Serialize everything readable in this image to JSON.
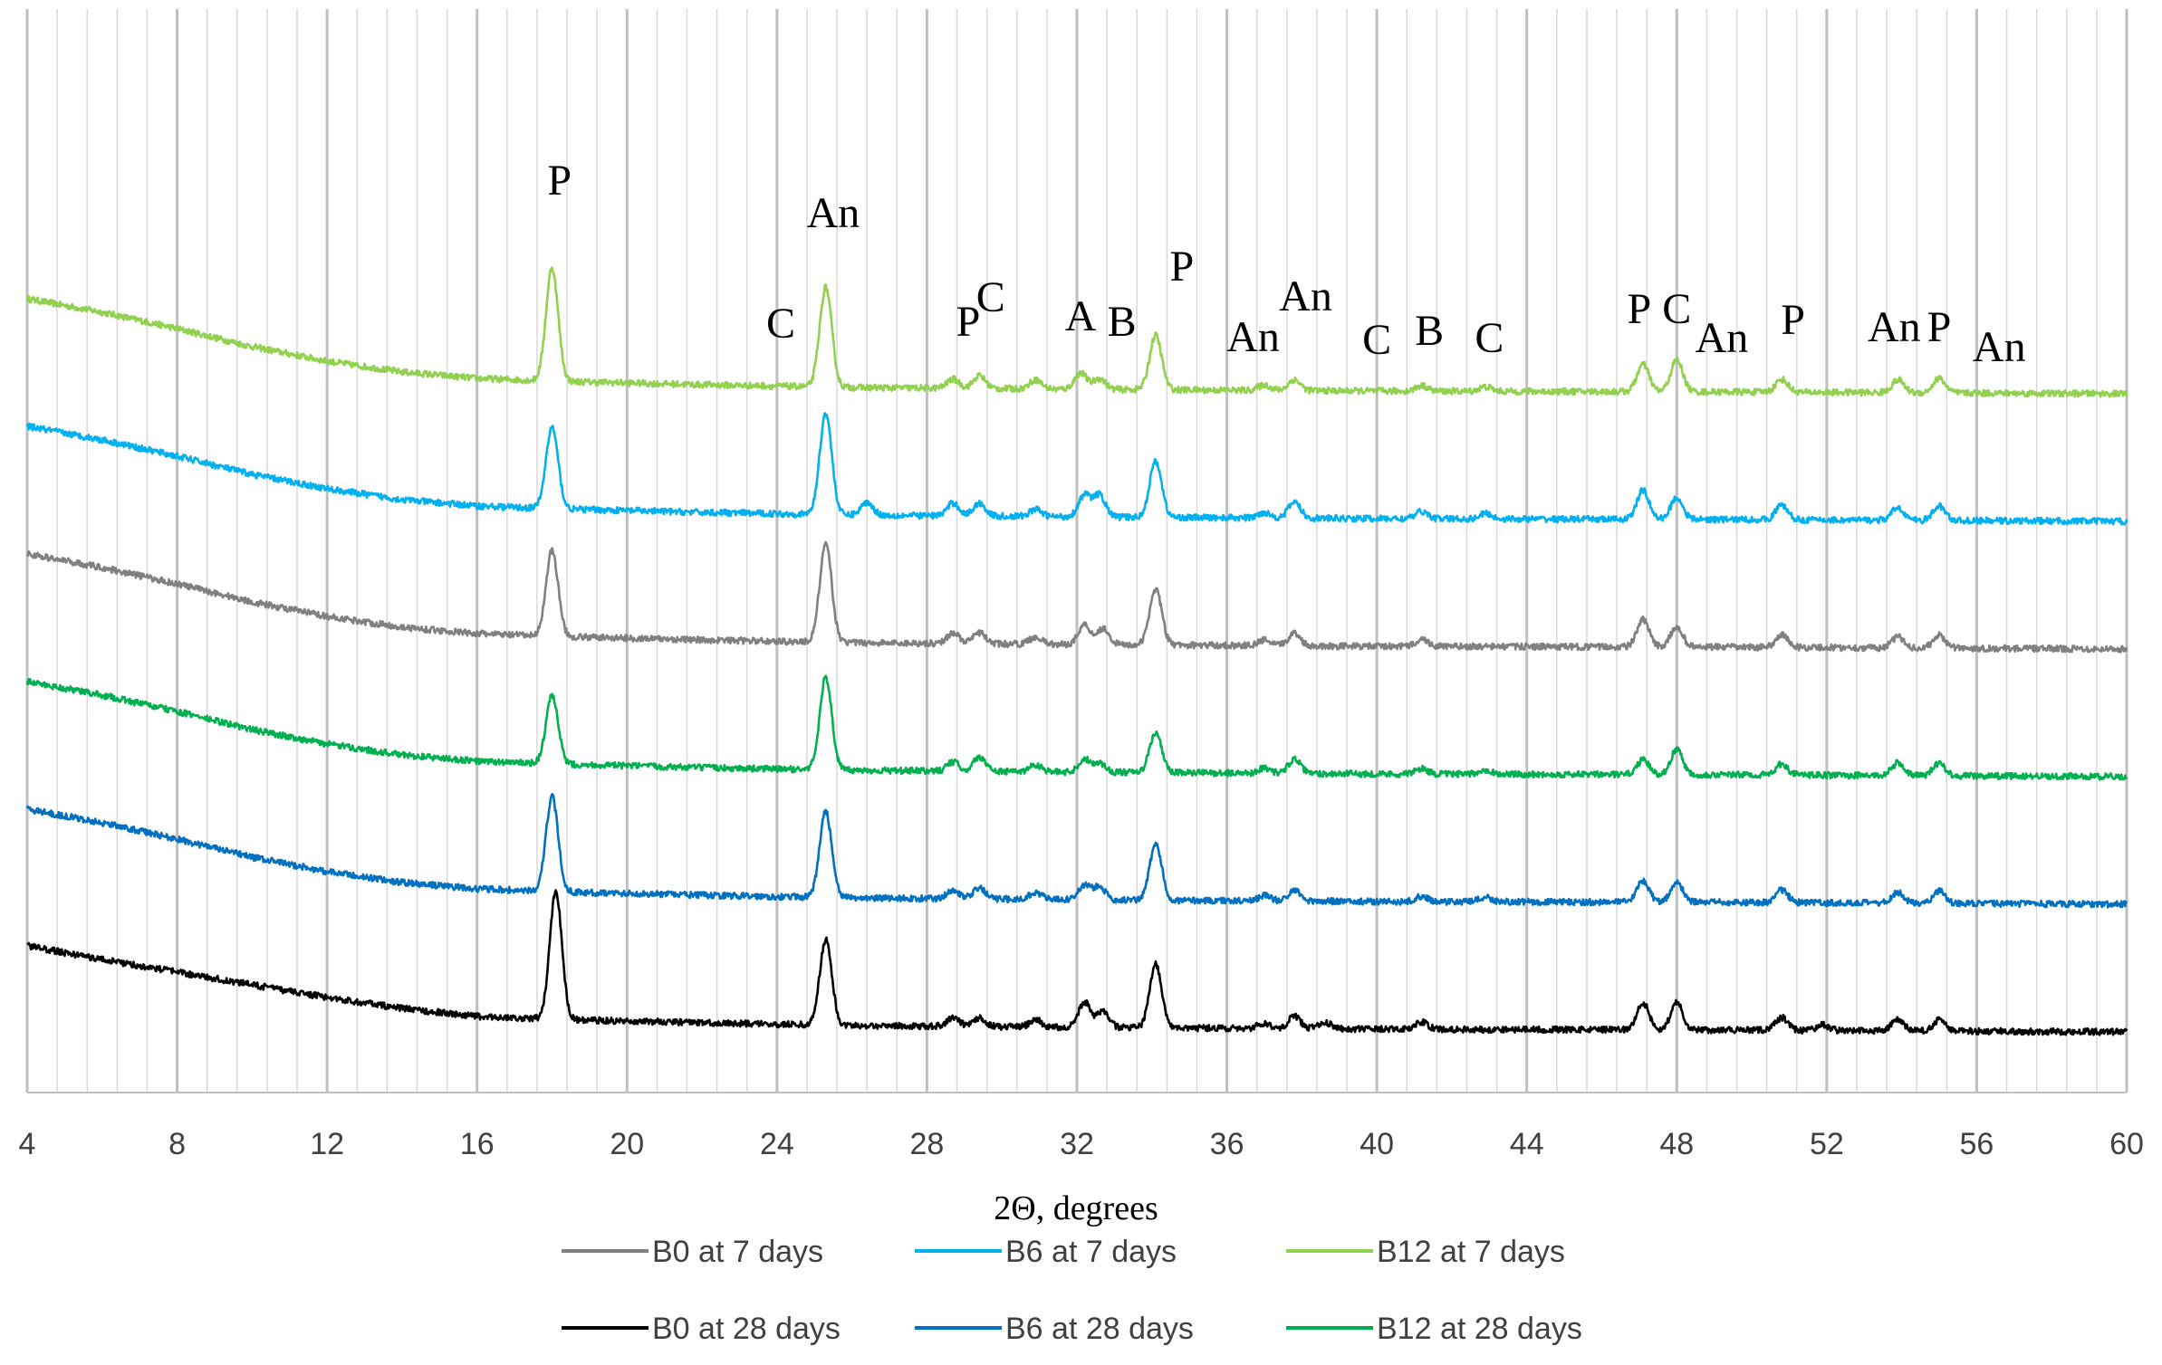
{
  "chart_data": {
    "type": "line",
    "title": "",
    "xlabel": "2Θ, degrees",
    "ylabel": "",
    "xlim": [
      4,
      60
    ],
    "x_ticks": [
      4,
      8,
      12,
      16,
      20,
      24,
      28,
      32,
      36,
      40,
      44,
      48,
      52,
      56,
      60
    ],
    "x_tick_labels": [
      "4",
      "8",
      "12",
      "16",
      "20",
      "24",
      "28",
      "32",
      "36",
      "40",
      "44",
      "48",
      "52",
      "56",
      "60"
    ],
    "minor_grid_step": 0.8,
    "series": [
      {
        "name": "B12 at 7 days",
        "color": "#92D050",
        "offset": 5,
        "baseline": [
          [
            4,
            1.05
          ],
          [
            6,
            0.9
          ],
          [
            8,
            0.72
          ],
          [
            10,
            0.52
          ],
          [
            12,
            0.36
          ],
          [
            14,
            0.24
          ],
          [
            16,
            0.17
          ],
          [
            18,
            0.14
          ],
          [
            22,
            0.1
          ],
          [
            26,
            0.07
          ],
          [
            32,
            0.05
          ],
          [
            40,
            0.03
          ],
          [
            50,
            0.02
          ],
          [
            60,
            0.0
          ]
        ],
        "peaks": [
          [
            18.0,
            1.25
          ],
          [
            25.3,
            1.1
          ],
          [
            28.7,
            0.1
          ],
          [
            29.4,
            0.14
          ],
          [
            30.9,
            0.1
          ],
          [
            32.1,
            0.18
          ],
          [
            32.6,
            0.12
          ],
          [
            34.1,
            0.6
          ],
          [
            37.0,
            0.06
          ],
          [
            37.8,
            0.12
          ],
          [
            41.2,
            0.06
          ],
          [
            42.9,
            0.05
          ],
          [
            47.1,
            0.3
          ],
          [
            48.0,
            0.35
          ],
          [
            50.8,
            0.14
          ],
          [
            53.9,
            0.14
          ],
          [
            55.0,
            0.16
          ]
        ]
      },
      {
        "name": "B6 at 7 days",
        "color": "#00B0F0",
        "offset": 4,
        "baseline": [
          [
            4,
            1.05
          ],
          [
            6,
            0.9
          ],
          [
            8,
            0.72
          ],
          [
            10,
            0.52
          ],
          [
            12,
            0.36
          ],
          [
            14,
            0.24
          ],
          [
            16,
            0.17
          ],
          [
            18,
            0.14
          ],
          [
            22,
            0.1
          ],
          [
            26,
            0.07
          ],
          [
            32,
            0.05
          ],
          [
            40,
            0.03
          ],
          [
            50,
            0.02
          ],
          [
            60,
            0.0
          ]
        ],
        "peaks": [
          [
            18.0,
            0.9
          ],
          [
            25.3,
            1.12
          ],
          [
            26.4,
            0.14
          ],
          [
            28.7,
            0.14
          ],
          [
            29.4,
            0.14
          ],
          [
            30.9,
            0.08
          ],
          [
            32.2,
            0.24
          ],
          [
            32.6,
            0.24
          ],
          [
            34.1,
            0.62
          ],
          [
            37.0,
            0.06
          ],
          [
            37.8,
            0.18
          ],
          [
            41.2,
            0.08
          ],
          [
            42.9,
            0.06
          ],
          [
            47.1,
            0.32
          ],
          [
            48.0,
            0.24
          ],
          [
            50.8,
            0.16
          ],
          [
            53.9,
            0.14
          ],
          [
            55.0,
            0.16
          ]
        ]
      },
      {
        "name": "B0 at 7 days",
        "color": "#808080",
        "offset": 3,
        "baseline": [
          [
            4,
            1.05
          ],
          [
            6,
            0.9
          ],
          [
            8,
            0.72
          ],
          [
            10,
            0.52
          ],
          [
            12,
            0.36
          ],
          [
            14,
            0.24
          ],
          [
            16,
            0.17
          ],
          [
            18,
            0.14
          ],
          [
            22,
            0.1
          ],
          [
            26,
            0.07
          ],
          [
            32,
            0.05
          ],
          [
            40,
            0.03
          ],
          [
            50,
            0.02
          ],
          [
            60,
            0.0
          ]
        ],
        "peaks": [
          [
            18.0,
            0.95
          ],
          [
            25.3,
            1.08
          ],
          [
            28.7,
            0.12
          ],
          [
            29.4,
            0.12
          ],
          [
            30.9,
            0.08
          ],
          [
            32.2,
            0.22
          ],
          [
            32.7,
            0.18
          ],
          [
            34.1,
            0.62
          ],
          [
            37.0,
            0.06
          ],
          [
            37.8,
            0.14
          ],
          [
            41.2,
            0.08
          ],
          [
            47.1,
            0.3
          ],
          [
            48.0,
            0.22
          ],
          [
            50.8,
            0.14
          ],
          [
            53.9,
            0.12
          ],
          [
            55.0,
            0.14
          ]
        ]
      },
      {
        "name": "B12 at 28 days",
        "color": "#00B050",
        "offset": 2,
        "baseline": [
          [
            4,
            1.05
          ],
          [
            6,
            0.9
          ],
          [
            8,
            0.72
          ],
          [
            10,
            0.52
          ],
          [
            12,
            0.36
          ],
          [
            14,
            0.24
          ],
          [
            16,
            0.17
          ],
          [
            18,
            0.14
          ],
          [
            22,
            0.1
          ],
          [
            26,
            0.07
          ],
          [
            32,
            0.05
          ],
          [
            40,
            0.03
          ],
          [
            50,
            0.02
          ],
          [
            60,
            0.0
          ]
        ],
        "peaks": [
          [
            18.0,
            0.75
          ],
          [
            25.3,
            1.02
          ],
          [
            28.7,
            0.1
          ],
          [
            29.4,
            0.16
          ],
          [
            30.9,
            0.08
          ],
          [
            32.2,
            0.14
          ],
          [
            32.6,
            0.1
          ],
          [
            34.1,
            0.44
          ],
          [
            37.0,
            0.06
          ],
          [
            37.8,
            0.16
          ],
          [
            41.2,
            0.06
          ],
          [
            42.9,
            0.05
          ],
          [
            47.1,
            0.16
          ],
          [
            48.0,
            0.28
          ],
          [
            50.8,
            0.12
          ],
          [
            53.9,
            0.14
          ],
          [
            55.0,
            0.14
          ]
        ]
      },
      {
        "name": "B6 at 28 days",
        "color": "#0070C0",
        "offset": 1,
        "baseline": [
          [
            4,
            1.05
          ],
          [
            6,
            0.9
          ],
          [
            8,
            0.72
          ],
          [
            10,
            0.52
          ],
          [
            12,
            0.36
          ],
          [
            14,
            0.24
          ],
          [
            16,
            0.17
          ],
          [
            18,
            0.14
          ],
          [
            22,
            0.1
          ],
          [
            26,
            0.07
          ],
          [
            32,
            0.05
          ],
          [
            40,
            0.03
          ],
          [
            50,
            0.02
          ],
          [
            60,
            0.0
          ]
        ],
        "peaks": [
          [
            18.0,
            1.05
          ],
          [
            25.3,
            0.95
          ],
          [
            28.7,
            0.1
          ],
          [
            29.4,
            0.12
          ],
          [
            30.9,
            0.08
          ],
          [
            32.2,
            0.16
          ],
          [
            32.6,
            0.14
          ],
          [
            34.1,
            0.62
          ],
          [
            37.0,
            0.06
          ],
          [
            37.8,
            0.12
          ],
          [
            41.2,
            0.06
          ],
          [
            42.9,
            0.05
          ],
          [
            47.1,
            0.24
          ],
          [
            48.0,
            0.22
          ],
          [
            50.8,
            0.14
          ],
          [
            53.9,
            0.12
          ],
          [
            55.0,
            0.14
          ]
        ]
      },
      {
        "name": "B0 at 28 days",
        "color": "#000000",
        "offset": 0,
        "baseline": [
          [
            4,
            0.95
          ],
          [
            6,
            0.8
          ],
          [
            8,
            0.66
          ],
          [
            10,
            0.52
          ],
          [
            12,
            0.38
          ],
          [
            14,
            0.26
          ],
          [
            16,
            0.17
          ],
          [
            18,
            0.14
          ],
          [
            22,
            0.1
          ],
          [
            26,
            0.07
          ],
          [
            32,
            0.05
          ],
          [
            40,
            0.03
          ],
          [
            50,
            0.02
          ],
          [
            60,
            0.0
          ]
        ],
        "peaks": [
          [
            18.1,
            1.42
          ],
          [
            25.3,
            0.94
          ],
          [
            28.7,
            0.1
          ],
          [
            29.4,
            0.1
          ],
          [
            30.9,
            0.08
          ],
          [
            32.2,
            0.28
          ],
          [
            32.7,
            0.18
          ],
          [
            34.1,
            0.7
          ],
          [
            37.0,
            0.06
          ],
          [
            37.8,
            0.14
          ],
          [
            38.6,
            0.08
          ],
          [
            41.2,
            0.08
          ],
          [
            47.1,
            0.3
          ],
          [
            48.0,
            0.3
          ],
          [
            50.8,
            0.14
          ],
          [
            51.9,
            0.06
          ],
          [
            53.9,
            0.12
          ],
          [
            55.0,
            0.12
          ]
        ]
      }
    ],
    "annotations": [
      {
        "text": "P",
        "x": 18.2,
        "level": 2.2
      },
      {
        "text": "An",
        "x": 25.5,
        "level": 1.84
      },
      {
        "text": "C",
        "x": 24.1,
        "level": 0.62
      },
      {
        "text": "P",
        "x": 29.1,
        "level": 0.64
      },
      {
        "text": "C",
        "x": 29.7,
        "level": 0.91
      },
      {
        "text": "A",
        "x": 32.1,
        "level": 0.7
      },
      {
        "text": "B",
        "x": 33.2,
        "level": 0.64
      },
      {
        "text": "P",
        "x": 34.8,
        "level": 1.25
      },
      {
        "text": "An",
        "x": 36.7,
        "level": 0.47
      },
      {
        "text": "An",
        "x": 38.1,
        "level": 0.92
      },
      {
        "text": "C",
        "x": 40.0,
        "level": 0.44
      },
      {
        "text": "B",
        "x": 41.4,
        "level": 0.54
      },
      {
        "text": "C",
        "x": 43.0,
        "level": 0.46
      },
      {
        "text": "P",
        "x": 47.0,
        "level": 0.78
      },
      {
        "text": "C",
        "x": 48.0,
        "level": 0.78
      },
      {
        "text": "An",
        "x": 49.2,
        "level": 0.46
      },
      {
        "text": "P",
        "x": 51.1,
        "level": 0.66
      },
      {
        "text": "An",
        "x": 53.8,
        "level": 0.58
      },
      {
        "text": "P",
        "x": 55.0,
        "level": 0.58
      },
      {
        "text": "An",
        "x": 56.6,
        "level": 0.36
      }
    ],
    "legend": {
      "placement": "bottom",
      "rows": [
        [
          "B0 at 7 days",
          "B6 at 7 days",
          "B12 at 7 days"
        ],
        [
          "B0 at 28 days",
          "B6 at 28 days",
          "B12 at 28 days"
        ]
      ]
    }
  }
}
